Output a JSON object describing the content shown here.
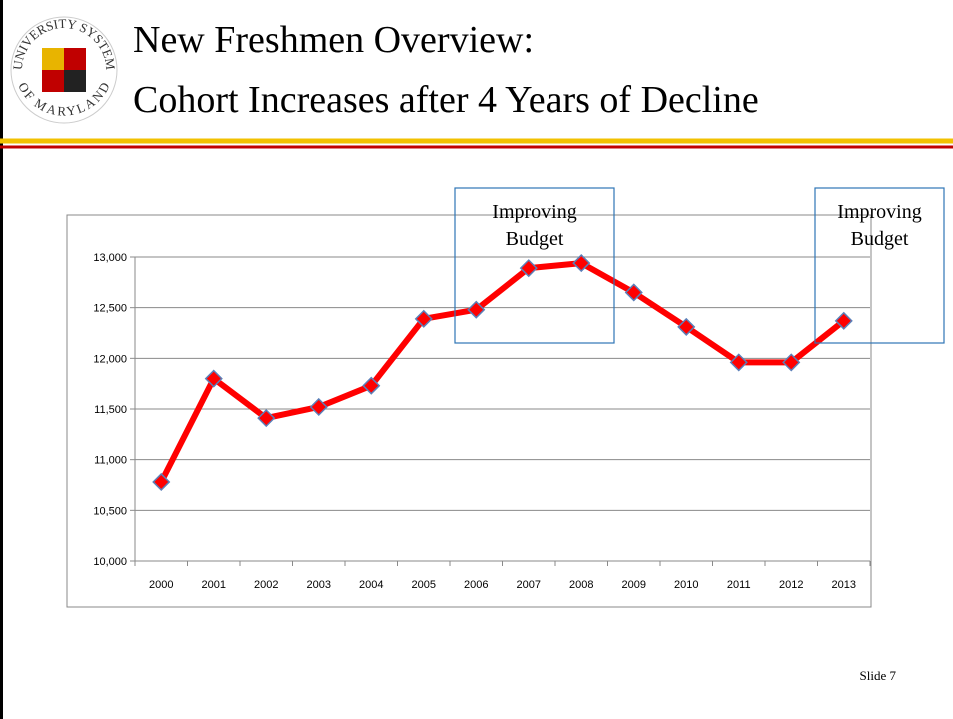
{
  "header": {
    "title_lines": [
      "New Freshmen Overview:",
      "Cohort Increases after 4 Years of Decline"
    ],
    "logo": {
      "top": "UNIVERSITY SYSTEM",
      "bottom": "OF MARYLAND"
    }
  },
  "chart_data": {
    "type": "line",
    "categories": [
      "2000",
      "2001",
      "2002",
      "2003",
      "2004",
      "2005",
      "2006",
      "2007",
      "2008",
      "2009",
      "2010",
      "2011",
      "2012",
      "2013"
    ],
    "values": [
      10780,
      11800,
      11410,
      11520,
      11730,
      12390,
      12480,
      12890,
      12940,
      12650,
      12310,
      11960,
      11960,
      12370
    ],
    "color": "#ff0000",
    "ylim": [
      10000,
      13000
    ],
    "yticks": [
      {
        "value": 10000,
        "label": "10,000"
      },
      {
        "value": 10500,
        "label": "10,500"
      },
      {
        "value": 11000,
        "label": "11,000"
      },
      {
        "value": 11500,
        "label": "11,500"
      },
      {
        "value": 12000,
        "label": "12,000"
      },
      {
        "value": 12500,
        "label": "12,500"
      },
      {
        "value": 13000,
        "label": "13,000"
      }
    ],
    "grid": true,
    "annotations": [
      {
        "lines": [
          "Improving",
          "Budget"
        ]
      },
      {
        "lines": [
          "Improving",
          "Budget"
        ]
      }
    ]
  },
  "footer": {
    "slide_number": "Slide 7"
  }
}
